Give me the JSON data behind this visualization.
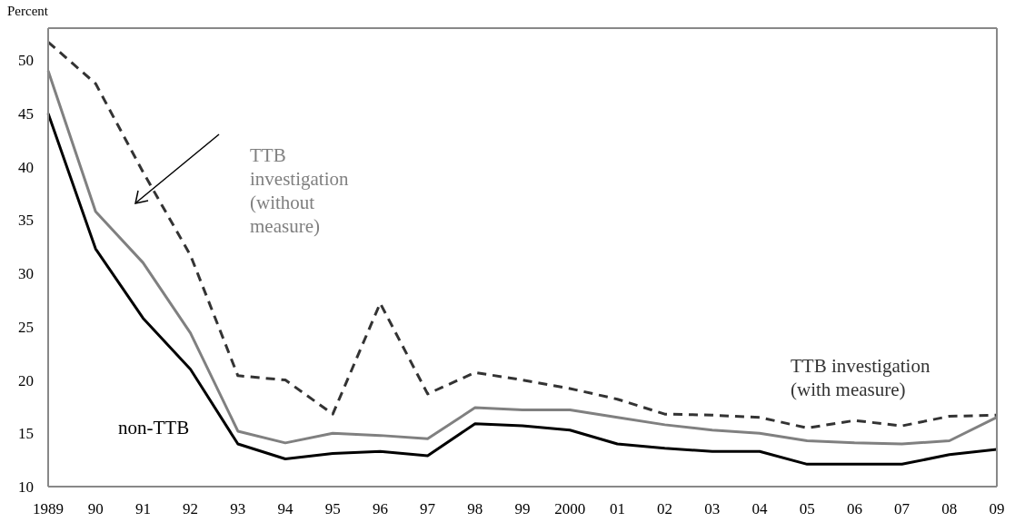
{
  "chart_data": {
    "type": "line",
    "ylabel": "Percent",
    "categories": [
      "1989",
      "90",
      "91",
      "92",
      "93",
      "94",
      "95",
      "96",
      "97",
      "98",
      "99",
      "2000",
      "01",
      "02",
      "03",
      "04",
      "05",
      "06",
      "07",
      "08",
      "09"
    ],
    "series": [
      {
        "name": "non-TTB",
        "color": "#000000",
        "line_style": "solid",
        "values": [
          45,
          32.3,
          25.8,
          21,
          14,
          12.6,
          13.1,
          13.3,
          12.9,
          15.9,
          15.7,
          15.3,
          14,
          13.6,
          13.3,
          13.3,
          12.1,
          12.1,
          12.1,
          13,
          13.5
        ]
      },
      {
        "name": "TTB investigation (without measure)",
        "color": "#808080",
        "line_style": "solid",
        "values": [
          49,
          35.8,
          31,
          24.4,
          15.2,
          14.1,
          15,
          14.8,
          14.5,
          17.4,
          17.2,
          17.2,
          16.5,
          15.8,
          15.3,
          15,
          14.3,
          14.1,
          14,
          14.3,
          16.5
        ]
      },
      {
        "name": "TTB investigation (with measure)",
        "color": "#333333",
        "line_style": "dashed",
        "values": [
          51.7,
          47.8,
          39.5,
          31.7,
          20.4,
          20,
          16.8,
          27.2,
          18.7,
          20.7,
          20,
          19.2,
          18.2,
          16.8,
          16.7,
          16.5,
          15.5,
          16.2,
          15.7,
          16.6,
          16.7
        ]
      }
    ],
    "ylim": [
      10,
      53
    ],
    "yticks": [
      10,
      15,
      20,
      25,
      30,
      35,
      40,
      45,
      50
    ],
    "grid": false,
    "legend": false,
    "marker": "none"
  }
}
